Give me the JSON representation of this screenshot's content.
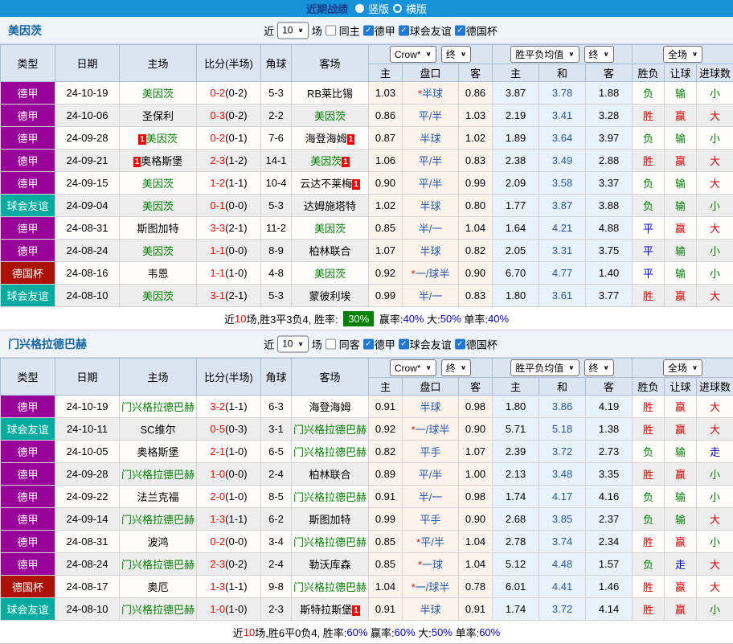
{
  "topbar": {
    "title": "近期战绩",
    "radio_vertical": "竖版",
    "radio_horizontal": "横版"
  },
  "filter": {
    "near": "近",
    "count": "10",
    "unit": "场"
  },
  "table_header": {
    "type": "类型",
    "date": "日期",
    "home": "主场",
    "score": "比分(半场)",
    "corner": "角球",
    "away": "客场",
    "odds_select": "Crow*",
    "odds_final": "终",
    "odds_cols": [
      "主",
      "盘口",
      "客"
    ],
    "wdl_select": "胜平负均值",
    "wdl_final": "终",
    "wdl_cols": [
      "主",
      "和",
      "客"
    ],
    "scope_select": "全场",
    "result_cols": [
      "胜负",
      "让球",
      "进球数"
    ]
  },
  "league_colors": {
    "德甲": "#990099",
    "球会友谊": "#00ab9f",
    "德国杯": "#ab1205"
  },
  "result_colors": {
    "胜": "#e00000",
    "赢": "#e00000",
    "大": "#e00000",
    "平": "#0000dd",
    "走": "#0000dd",
    "负": "#008000",
    "输": "#008000",
    "小": "#008000"
  },
  "sections": [
    {
      "team": "美因茨",
      "same_side_label": "同主",
      "leagues": [
        "德甲",
        "球会友谊",
        "德国杯"
      ],
      "rows": [
        {
          "lg": "德甲",
          "date": "24-10-19",
          "hrc": false,
          "home": "美因茨",
          "hhl": true,
          "score": "0-2",
          "half": "(0-2)",
          "cor": "5-3",
          "away": "RB莱比锡",
          "ahl": false,
          "arc": false,
          "o1": "1.03",
          "st": true,
          "hc": "半球",
          "o2": "0.86",
          "w": "3.87",
          "d": "3.78",
          "l": "1.88",
          "r1": "负",
          "r2": "输",
          "r3": "小"
        },
        {
          "lg": "德甲",
          "date": "24-10-06",
          "hrc": false,
          "home": "圣保利",
          "hhl": false,
          "score": "0-3",
          "half": "(0-2)",
          "cor": "2-2",
          "away": "美因茨",
          "ahl": true,
          "arc": false,
          "o1": "0.86",
          "st": false,
          "hc": "平/半",
          "o2": "1.03",
          "w": "2.19",
          "d": "3.41",
          "l": "3.28",
          "r1": "胜",
          "r2": "赢",
          "r3": "大"
        },
        {
          "lg": "德甲",
          "date": "24-09-28",
          "hrc": true,
          "home": "美因茨",
          "hhl": true,
          "score": "0-2",
          "half": "(0-1)",
          "cor": "7-6",
          "away": "海登海姆",
          "ahl": false,
          "arc": true,
          "o1": "0.87",
          "st": false,
          "hc": "半球",
          "o2": "1.02",
          "w": "1.89",
          "d": "3.64",
          "l": "3.97",
          "r1": "负",
          "r2": "输",
          "r3": "小"
        },
        {
          "lg": "德甲",
          "date": "24-09-21",
          "hrc": true,
          "home": "奥格斯堡",
          "hhl": false,
          "score": "2-3",
          "half": "(1-2)",
          "cor": "14-1",
          "away": "美因茨",
          "ahl": true,
          "arc": true,
          "o1": "1.06",
          "st": false,
          "hc": "平/半",
          "o2": "0.83",
          "w": "2.38",
          "d": "3.49",
          "l": "2.88",
          "r1": "胜",
          "r2": "赢",
          "r3": "大"
        },
        {
          "lg": "德甲",
          "date": "24-09-15",
          "hrc": false,
          "home": "美因茨",
          "hhl": true,
          "score": "1-2",
          "half": "(1-1)",
          "cor": "10-4",
          "away": "云达不莱梅",
          "ahl": false,
          "arc": true,
          "o1": "0.90",
          "st": false,
          "hc": "平/半",
          "o2": "0.99",
          "w": "2.09",
          "d": "3.58",
          "l": "3.37",
          "r1": "负",
          "r2": "输",
          "r3": "大"
        },
        {
          "lg": "球会友谊",
          "date": "24-09-04",
          "hrc": false,
          "home": "美因茨",
          "hhl": true,
          "score": "0-1",
          "half": "(0-0)",
          "cor": "5-3",
          "away": "达姆施塔特",
          "ahl": false,
          "arc": false,
          "o1": "1.02",
          "st": false,
          "hc": "半球",
          "o2": "0.80",
          "w": "1.77",
          "d": "3.87",
          "l": "3.88",
          "r1": "负",
          "r2": "输",
          "r3": "小"
        },
        {
          "lg": "德甲",
          "date": "24-08-31",
          "hrc": false,
          "home": "斯图加特",
          "hhl": false,
          "score": "3-3",
          "half": "(2-1)",
          "cor": "11-2",
          "away": "美因茨",
          "ahl": true,
          "arc": false,
          "o1": "0.85",
          "st": false,
          "hc": "半/一",
          "o2": "1.04",
          "w": "1.64",
          "d": "4.21",
          "l": "4.88",
          "r1": "平",
          "r2": "赢",
          "r3": "大"
        },
        {
          "lg": "德甲",
          "date": "24-08-24",
          "hrc": false,
          "home": "美因茨",
          "hhl": true,
          "score": "1-1",
          "half": "(0-0)",
          "cor": "8-9",
          "away": "柏林联合",
          "ahl": false,
          "arc": false,
          "o1": "1.07",
          "st": false,
          "hc": "半球",
          "o2": "0.82",
          "w": "2.05",
          "d": "3.31",
          "l": "3.75",
          "r1": "平",
          "r2": "输",
          "r3": "小"
        },
        {
          "lg": "德国杯",
          "date": "24-08-16",
          "hrc": false,
          "home": "韦恩",
          "hhl": false,
          "score": "1-1",
          "half": "(1-0)",
          "cor": "4-8",
          "away": "美因茨",
          "ahl": true,
          "arc": false,
          "o1": "0.92",
          "st": true,
          "hc": "一/球半",
          "o2": "0.90",
          "w": "6.70",
          "d": "4.77",
          "l": "1.40",
          "r1": "平",
          "r2": "输",
          "r3": "小"
        },
        {
          "lg": "球会友谊",
          "date": "24-08-10",
          "hrc": false,
          "home": "美因茨",
          "hhl": true,
          "score": "3-1",
          "half": "(2-1)",
          "cor": "5-3",
          "away": "蒙彼利埃",
          "ahl": false,
          "arc": false,
          "o1": "0.99",
          "st": false,
          "hc": "半/一",
          "o2": "0.83",
          "w": "1.80",
          "d": "3.61",
          "l": "3.77",
          "r1": "胜",
          "r2": "赢",
          "r3": "大"
        }
      ],
      "summary": {
        "lead": "近",
        "games": "10",
        "mid": "场,胜3平3负4, 胜率: ",
        "win_rate": "30%",
        "badge": true,
        "stats": [
          {
            "label": " 赢率:",
            "value": "40%"
          },
          {
            "label": " 大:",
            "value": "50%"
          },
          {
            "label": " 单率:",
            "value": "40%"
          }
        ]
      }
    },
    {
      "team": "门兴格拉德巴赫",
      "same_side_label": "同客",
      "leagues": [
        "德甲",
        "球会友谊",
        "德国杯"
      ],
      "rows": [
        {
          "lg": "德甲",
          "date": "24-10-19",
          "hrc": false,
          "home": "门兴格拉德巴赫",
          "hhl": true,
          "score": "3-2",
          "half": "(1-1)",
          "cor": "6-3",
          "away": "海登海姆",
          "ahl": false,
          "arc": false,
          "o1": "0.91",
          "st": false,
          "hc": "半球",
          "o2": "0.98",
          "w": "1.80",
          "d": "3.86",
          "l": "4.19",
          "r1": "胜",
          "r2": "赢",
          "r3": "大"
        },
        {
          "lg": "球会友谊",
          "date": "24-10-11",
          "hrc": false,
          "home": "SC维尔",
          "hhl": false,
          "score": "0-5",
          "half": "(0-3)",
          "cor": "3-1",
          "away": "门兴格拉德巴赫",
          "ahl": true,
          "arc": false,
          "o1": "0.92",
          "st": true,
          "hc": "一/球半",
          "o2": "0.90",
          "w": "5.71",
          "d": "5.18",
          "l": "1.38",
          "r1": "胜",
          "r2": "赢",
          "r3": "大"
        },
        {
          "lg": "德甲",
          "date": "24-10-05",
          "hrc": false,
          "home": "奥格斯堡",
          "hhl": false,
          "score": "2-1",
          "half": "(1-0)",
          "cor": "6-5",
          "away": "门兴格拉德巴赫",
          "ahl": true,
          "arc": false,
          "o1": "0.82",
          "st": false,
          "hc": "平手",
          "o2": "1.07",
          "w": "2.39",
          "d": "3.72",
          "l": "2.73",
          "r1": "负",
          "r2": "输",
          "r3": "走"
        },
        {
          "lg": "德甲",
          "date": "24-09-28",
          "hrc": false,
          "home": "门兴格拉德巴赫",
          "hhl": true,
          "score": "1-0",
          "half": "(0-0)",
          "cor": "2-4",
          "away": "柏林联合",
          "ahl": false,
          "arc": false,
          "o1": "0.89",
          "st": false,
          "hc": "平/半",
          "o2": "1.00",
          "w": "2.13",
          "d": "3.48",
          "l": "3.35",
          "r1": "胜",
          "r2": "赢",
          "r3": "小"
        },
        {
          "lg": "德甲",
          "date": "24-09-22",
          "hrc": false,
          "home": "法兰克福",
          "hhl": false,
          "score": "2-0",
          "half": "(1-0)",
          "cor": "8-5",
          "away": "门兴格拉德巴赫",
          "ahl": true,
          "arc": false,
          "o1": "0.91",
          "st": false,
          "hc": "半/一",
          "o2": "0.98",
          "w": "1.74",
          "d": "4.17",
          "l": "4.16",
          "r1": "负",
          "r2": "输",
          "r3": "小"
        },
        {
          "lg": "德甲",
          "date": "24-09-14",
          "hrc": false,
          "home": "门兴格拉德巴赫",
          "hhl": true,
          "score": "1-3",
          "half": "(1-1)",
          "cor": "6-2",
          "away": "斯图加特",
          "ahl": false,
          "arc": false,
          "o1": "0.99",
          "st": false,
          "hc": "平手",
          "o2": "0.90",
          "w": "2.68",
          "d": "3.85",
          "l": "2.37",
          "r1": "负",
          "r2": "输",
          "r3": "大"
        },
        {
          "lg": "德甲",
          "date": "24-08-31",
          "hrc": false,
          "home": "波鸿",
          "hhl": false,
          "score": "0-2",
          "half": "(0-0)",
          "cor": "3-4",
          "away": "门兴格拉德巴赫",
          "ahl": true,
          "arc": false,
          "o1": "0.85",
          "st": true,
          "hc": "平/半",
          "o2": "1.04",
          "w": "2.78",
          "d": "3.74",
          "l": "2.34",
          "r1": "胜",
          "r2": "赢",
          "r3": "小"
        },
        {
          "lg": "德甲",
          "date": "24-08-24",
          "hrc": false,
          "home": "门兴格拉德巴赫",
          "hhl": true,
          "score": "2-3",
          "half": "(0-2)",
          "cor": "2-4",
          "away": "勒沃库森",
          "ahl": false,
          "arc": false,
          "o1": "0.85",
          "st": true,
          "hc": "一球",
          "o2": "1.04",
          "w": "5.12",
          "d": "4.48",
          "l": "1.57",
          "r1": "负",
          "r2": "走",
          "r3": "大"
        },
        {
          "lg": "德国杯",
          "date": "24-08-17",
          "hrc": false,
          "home": "奥厄",
          "hhl": false,
          "score": "1-3",
          "half": "(1-1)",
          "cor": "9-8",
          "away": "门兴格拉德巴赫",
          "ahl": true,
          "arc": false,
          "o1": "1.04",
          "st": true,
          "hc": "一/球半",
          "o2": "0.78",
          "w": "6.01",
          "d": "4.41",
          "l": "1.46",
          "r1": "胜",
          "r2": "赢",
          "r3": "大"
        },
        {
          "lg": "球会友谊",
          "date": "24-08-10",
          "hrc": false,
          "home": "门兴格拉德巴赫",
          "hhl": true,
          "score": "1-0",
          "half": "(1-0)",
          "cor": "2-3",
          "away": "斯特拉斯堡",
          "ahl": false,
          "arc": true,
          "o1": "0.91",
          "st": false,
          "hc": "半球",
          "o2": "0.91",
          "w": "1.74",
          "d": "3.72",
          "l": "4.14",
          "r1": "胜",
          "r2": "赢",
          "r3": "小"
        }
      ],
      "summary": {
        "lead": "近",
        "games": "10",
        "mid": "场,胜6平0负4, 胜率:",
        "win_rate": "60%",
        "badge": false,
        "stats": [
          {
            "label": " 赢率:",
            "value": "60%"
          },
          {
            "label": " 大:",
            "value": "50%"
          },
          {
            "label": " 单率:",
            "value": "60%"
          }
        ]
      }
    }
  ]
}
